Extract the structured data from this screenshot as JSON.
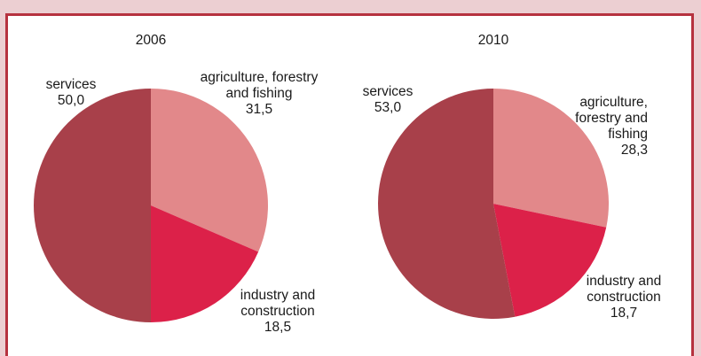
{
  "chart_data": [
    {
      "type": "pie",
      "title": "2006",
      "slices": [
        {
          "label": [
            "agriculture, forestry",
            "and fishing"
          ],
          "value": 31.5,
          "value_text": "31,5",
          "color": "#e2888a"
        },
        {
          "label": [
            "industry and",
            "construction"
          ],
          "value": 18.5,
          "value_text": "18,5",
          "color": "#dc2149"
        },
        {
          "label": [
            "services"
          ],
          "value": 50.0,
          "value_text": "50,0",
          "color": "#a8404a"
        }
      ]
    },
    {
      "type": "pie",
      "title": "2010",
      "slices": [
        {
          "label": [
            "agriculture,",
            "forestry and",
            "fishing"
          ],
          "value": 28.3,
          "value_text": "28,3",
          "color": "#e2888a"
        },
        {
          "label": [
            "industry and",
            "construction"
          ],
          "value": 18.7,
          "value_text": "18,7",
          "color": "#dc2149"
        },
        {
          "label": [
            "services"
          ],
          "value": 53.0,
          "value_text": "53,0",
          "color": "#a8404a"
        }
      ]
    }
  ],
  "colors": {
    "background": "#eccfd2",
    "border": "#b6323f",
    "panel": "#ffffff"
  }
}
